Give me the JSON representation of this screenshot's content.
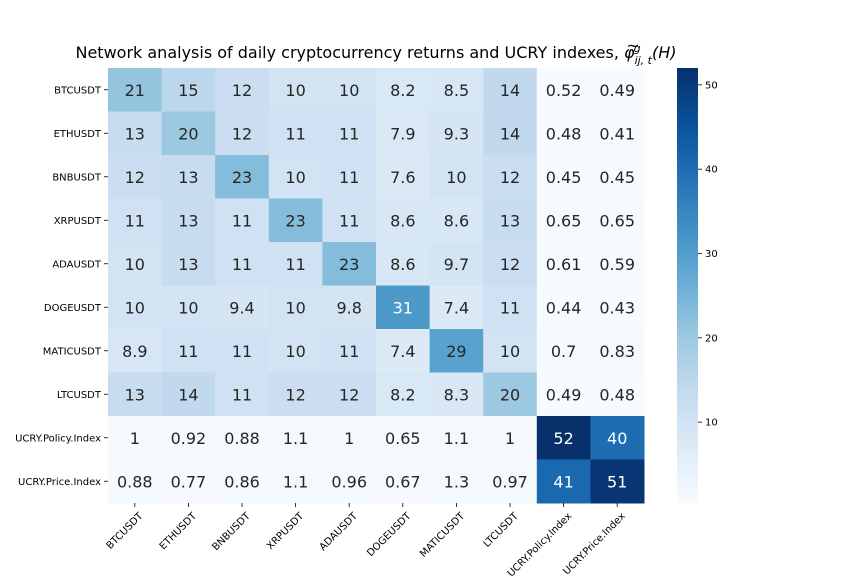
{
  "chart_data": {
    "type": "heatmap",
    "title": "Network analysis of daily cryptocurrency returns and UCRY indexes, ",
    "title_math": {
      "base": "φ",
      "accent": "~",
      "sup": "g",
      "sub": "ij, t",
      "arg": "(H)"
    },
    "row_labels": [
      "BTCUSDT",
      "ETHUSDT",
      "BNBUSDT",
      "XRPUSDT",
      "ADAUSDT",
      "DOGEUSDT",
      "MATICUSDT",
      "LTCUSDT",
      "UCRY.Policy.Index",
      "UCRY.Price.Index"
    ],
    "col_labels": [
      "BTCUSDT",
      "ETHUSDT",
      "BNBUSDT",
      "XRPUSDT",
      "ADAUSDT",
      "DOGEUSDT",
      "MATICUSDT",
      "LTCUSDT",
      "UCRY.Policy.Index",
      "UCRY.Price.Index"
    ],
    "values": [
      [
        21,
        15,
        12,
        10,
        10,
        8.2,
        8.5,
        14,
        0.52,
        0.49
      ],
      [
        13,
        20,
        12,
        11,
        11,
        7.9,
        9.3,
        14,
        0.48,
        0.41
      ],
      [
        12,
        13,
        23,
        10,
        11,
        7.6,
        10,
        12,
        0.45,
        0.45
      ],
      [
        11,
        13,
        11,
        23,
        11,
        8.6,
        8.6,
        13,
        0.65,
        0.65
      ],
      [
        10,
        13,
        11,
        11,
        23,
        8.6,
        9.7,
        12,
        0.61,
        0.59
      ],
      [
        10,
        10,
        9.4,
        10,
        9.8,
        31,
        7.4,
        11,
        0.44,
        0.43
      ],
      [
        8.9,
        11,
        11,
        10,
        11,
        7.4,
        29,
        10,
        0.7,
        0.83
      ],
      [
        13,
        14,
        11,
        12,
        12,
        8.2,
        8.3,
        20,
        0.49,
        0.48
      ],
      [
        1,
        0.92,
        0.88,
        1.1,
        1,
        0.65,
        1.1,
        1,
        52,
        40
      ],
      [
        0.88,
        0.77,
        0.86,
        1.1,
        0.96,
        0.67,
        1.3,
        0.97,
        41,
        51
      ]
    ],
    "color_scale": {
      "name": "Blues",
      "vmin": 0.41,
      "vmax": 52,
      "ticks": [
        10,
        20,
        30,
        40,
        50
      ],
      "stops": [
        "#f7fbff",
        "#deebf7",
        "#c6dbef",
        "#9ecae1",
        "#6baed6",
        "#4292c6",
        "#2171b5",
        "#08519c",
        "#08306b"
      ]
    }
  }
}
